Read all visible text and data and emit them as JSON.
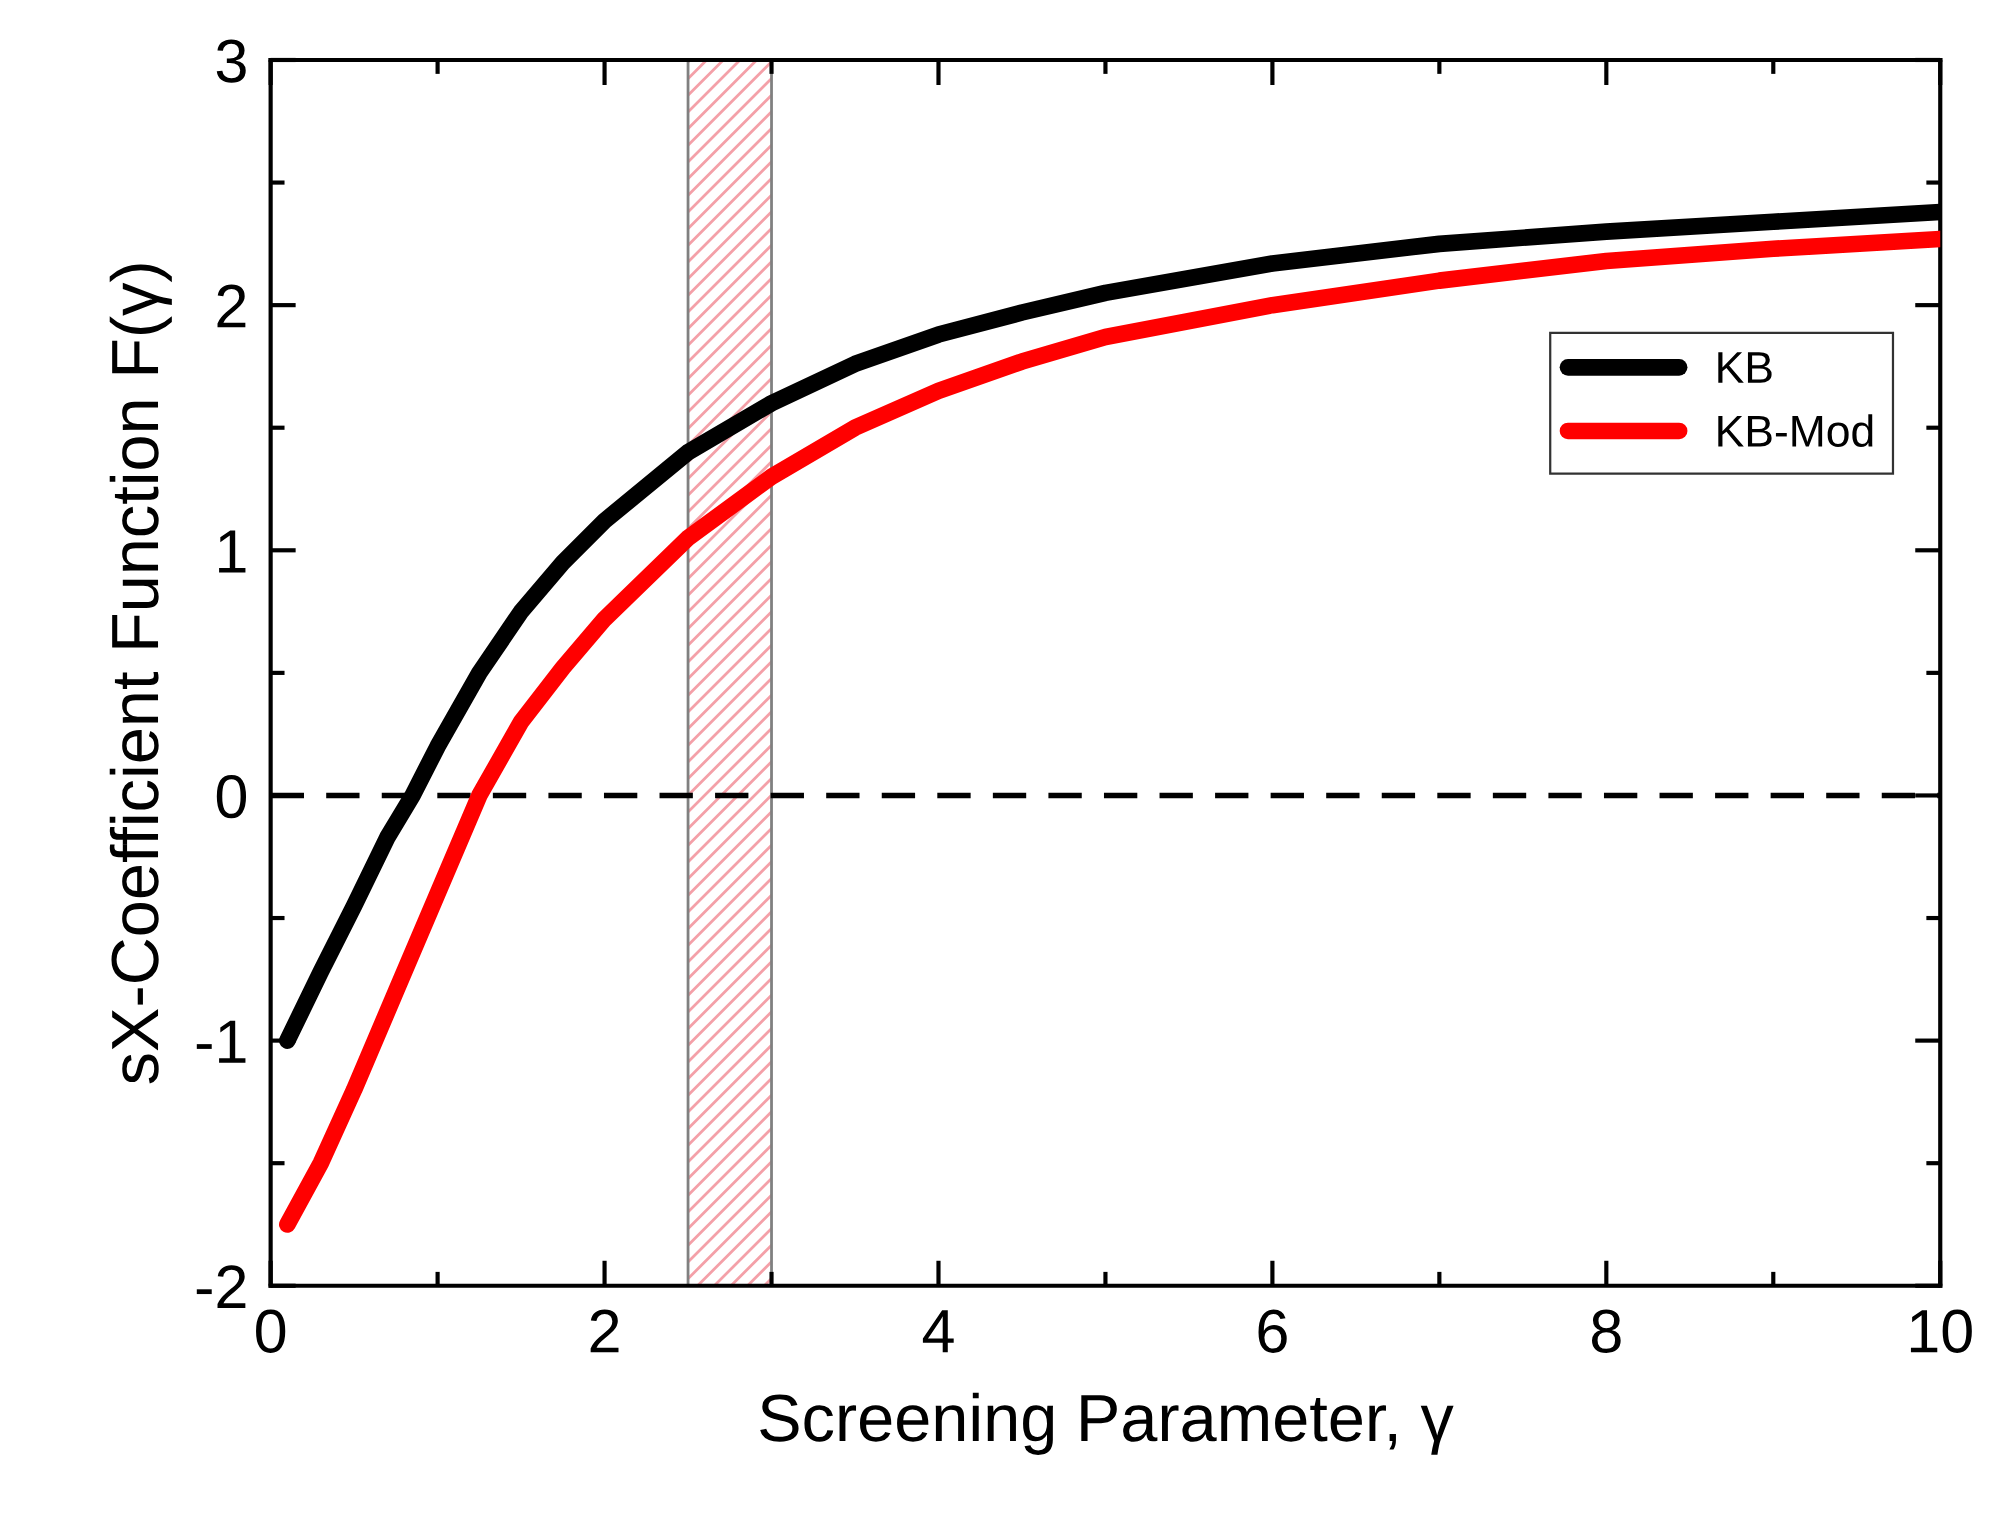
{
  "chart_data": {
    "type": "line",
    "xlabel": "Screening Parameter, γ",
    "ylabel": "sX-Coefficient Function F(γ)",
    "xlim": [
      0,
      10
    ],
    "ylim": [
      -2,
      3
    ],
    "xticks": [
      0,
      2,
      4,
      6,
      8,
      10
    ],
    "yticks": [
      -2,
      -1,
      0,
      1,
      2,
      3
    ],
    "series": [
      {
        "name": "KB",
        "color": "#000000",
        "x": [
          0.1,
          0.3,
          0.5,
          0.7,
          0.85,
          1,
          1.25,
          1.5,
          1.75,
          2,
          2.5,
          3,
          3.5,
          4,
          4.5,
          5,
          6,
          7,
          8,
          9,
          10
        ],
        "values": [
          -1,
          -0.72,
          -0.45,
          -0.17,
          0,
          0.2,
          0.5,
          0.75,
          0.95,
          1.12,
          1.4,
          1.6,
          1.76,
          1.88,
          1.97,
          2.05,
          2.17,
          2.25,
          2.3,
          2.34,
          2.38
        ]
      },
      {
        "name": "KB-Mod",
        "color": "#ff0000",
        "x": [
          0.1,
          0.3,
          0.5,
          0.75,
          1,
          1.25,
          1.5,
          1.75,
          2,
          2.5,
          3,
          3.5,
          4,
          4.5,
          5,
          6,
          7,
          8,
          9,
          10
        ],
        "values": [
          -1.75,
          -1.5,
          -1.2,
          -0.8,
          -0.4,
          0,
          0.3,
          0.52,
          0.72,
          1.05,
          1.3,
          1.5,
          1.65,
          1.77,
          1.87,
          2.0,
          2.1,
          2.18,
          2.23,
          2.27
        ]
      }
    ],
    "ref_lines": [
      {
        "axis": "y",
        "value": 0,
        "color": "#000000",
        "line_style": "dashed"
      }
    ],
    "bands": [
      {
        "axis": "x",
        "from": 2.5,
        "to": 3.0,
        "color": "#f4a0a8"
      }
    ],
    "legend": "right",
    "grid": false
  }
}
